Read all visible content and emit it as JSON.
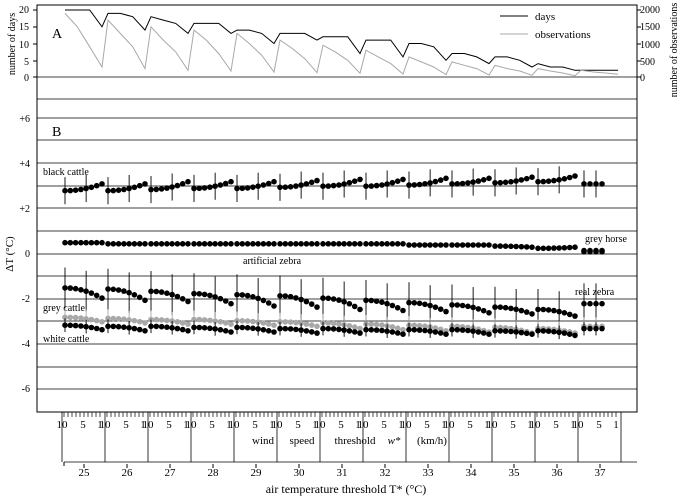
{
  "panel_a": {
    "letter": "A",
    "ylabel_left": "number of days",
    "ylabel_right": "number of observations",
    "left_ticks": [
      "0",
      "5",
      "10",
      "15",
      "20"
    ],
    "right_ticks": [
      "0",
      "500",
      "1000",
      "1500",
      "2000"
    ],
    "legend": [
      "days",
      "observations"
    ]
  },
  "panel_b": {
    "letter": "B",
    "ylabel": "ΔT (°C)",
    "y_ticks": [
      "+6",
      "+4",
      "+2",
      "0",
      "-2",
      "-4",
      "-6"
    ],
    "labels": {
      "black_cattle": "black cattle",
      "artificial_zebra": "artificial zebra",
      "grey_horse": "grey horse",
      "real_zebra": "real zebra",
      "grey_cattle": "grey cattle",
      "white_cattle": "white cattle"
    }
  },
  "x_axis": {
    "inner_ticks": [
      "10",
      "5",
      "1"
    ],
    "first_inner_ticks": [
      "10",
      "5",
      "1"
    ],
    "wind_words": [
      "wind",
      "speed",
      "threshold",
      "w*",
      "(km/h)"
    ],
    "temps": [
      "25",
      "26",
      "27",
      "28",
      "29",
      "30",
      "31",
      "32",
      "33",
      "34",
      "35",
      "36",
      "37"
    ],
    "xlabel": "air temperature threshold T* (°C)"
  },
  "colors": {
    "black": "#000000",
    "grey": "#a8a8a8",
    "gridline": "#000000"
  },
  "chart_data": {
    "type": "line",
    "structure": "For each air temperature threshold T* (25–37 °C) the wind speed threshold w* runs from 10 to 1 km/h",
    "panel_a": {
      "series": [
        {
          "name": "days",
          "axis": "left",
          "unit": "days",
          "segment_values": [
            [
              20,
              20,
              20,
              15
            ],
            [
              19,
              19,
              18,
              14
            ],
            [
              18,
              17,
              16,
              13
            ],
            [
              16,
              16,
              16,
              13
            ],
            [
              14,
              14,
              13,
              10
            ],
            [
              13,
              13,
              13,
              11
            ],
            [
              12,
              12,
              12,
              7
            ],
            [
              11,
              11,
              11,
              6
            ],
            [
              10,
              10,
              9,
              5
            ],
            [
              7,
              7,
              6,
              4
            ],
            [
              6,
              6,
              5,
              3
            ],
            [
              4,
              3,
              3,
              2
            ],
            [
              2,
              2,
              2,
              2
            ]
          ]
        },
        {
          "name": "observations",
          "axis": "right",
          "unit": "observations",
          "segment_values": [
            [
              1900,
              1500,
              900,
              300
            ],
            [
              1700,
              1300,
              900,
              250
            ],
            [
              1500,
              1100,
              750,
              200
            ],
            [
              1400,
              1100,
              700,
              180
            ],
            [
              1300,
              1000,
              650,
              150
            ],
            [
              1100,
              850,
              550,
              130
            ],
            [
              950,
              750,
              500,
              110
            ],
            [
              800,
              600,
              400,
              90
            ],
            [
              600,
              450,
              300,
              70
            ],
            [
              450,
              350,
              250,
              60
            ],
            [
              350,
              250,
              180,
              50
            ],
            [
              250,
              180,
              120,
              40
            ],
            [
              200,
              150,
              120,
              80
            ]
          ]
        }
      ]
    },
    "panel_b": {
      "ylim": [
        -7,
        7
      ],
      "series": [
        {
          "name": "black cattle",
          "color": "black",
          "mean_start": [
            2.8,
            2.8,
            2.85,
            2.9,
            2.9,
            2.95,
            3.0,
            3.0,
            3.05,
            3.1,
            3.15,
            3.2,
            3.1
          ],
          "mean_end": [
            3.1,
            3.1,
            3.2,
            3.2,
            3.2,
            3.25,
            3.3,
            3.3,
            3.35,
            3.35,
            3.4,
            3.45,
            3.1
          ],
          "error": 0.6
        },
        {
          "name": "artificial zebra",
          "color": "black",
          "mean_start": [
            0.5,
            0.45,
            0.45,
            0.45,
            0.45,
            0.45,
            0.45,
            0.45,
            0.4,
            0.4,
            0.35,
            0.25,
            0.15
          ],
          "mean_end": [
            0.5,
            0.45,
            0.45,
            0.45,
            0.45,
            0.45,
            0.45,
            0.45,
            0.4,
            0.4,
            0.3,
            0.3,
            0.15
          ],
          "error": 0.1
        },
        {
          "name": "grey horse",
          "color": "black",
          "mean_start": [
            null,
            null,
            null,
            null,
            null,
            null,
            null,
            null,
            null,
            null,
            null,
            null,
            0.45
          ],
          "mean_end": [
            null,
            null,
            null,
            null,
            null,
            null,
            null,
            null,
            null,
            null,
            null,
            null,
            0.45
          ],
          "error": 0.05
        },
        {
          "name": "real zebra",
          "color": "black",
          "mean_start": [
            -1.5,
            -1.55,
            -1.65,
            -1.75,
            -1.8,
            -1.85,
            -1.95,
            -2.05,
            -2.15,
            -2.25,
            -2.35,
            -2.45,
            -2.2
          ],
          "mean_end": [
            -1.95,
            -2.05,
            -2.1,
            -2.2,
            -2.3,
            -2.35,
            -2.45,
            -2.5,
            -2.55,
            -2.6,
            -2.65,
            -2.75,
            -2.2
          ],
          "error": 0.9
        },
        {
          "name": "grey cattle",
          "color": "grey",
          "mean_start": [
            -2.8,
            -2.85,
            -2.9,
            -2.9,
            -2.95,
            -3.0,
            -3.05,
            -3.1,
            -3.15,
            -3.2,
            -3.25,
            -3.3,
            -3.2
          ],
          "mean_end": [
            -3.0,
            -3.05,
            -3.1,
            -3.1,
            -3.15,
            -3.2,
            -3.3,
            -3.35,
            -3.4,
            -3.45,
            -3.5,
            -3.5,
            -3.2
          ],
          "error": 0.4
        },
        {
          "name": "white cattle",
          "color": "black",
          "mean_start": [
            -3.15,
            -3.2,
            -3.2,
            -3.25,
            -3.25,
            -3.3,
            -3.3,
            -3.35,
            -3.35,
            -3.35,
            -3.4,
            -3.4,
            -3.3
          ],
          "mean_end": [
            -3.35,
            -3.4,
            -3.4,
            -3.45,
            -3.45,
            -3.5,
            -3.5,
            -3.55,
            -3.55,
            -3.55,
            -3.55,
            -3.6,
            -3.3
          ],
          "error": 0.3
        }
      ]
    },
    "x_temperature_categories": [
      "25",
      "26",
      "27",
      "28",
      "29",
      "30",
      "31",
      "32",
      "33",
      "34",
      "35",
      "36",
      "37"
    ],
    "x_wind_ticks": [
      "10",
      "5",
      "1"
    ]
  }
}
